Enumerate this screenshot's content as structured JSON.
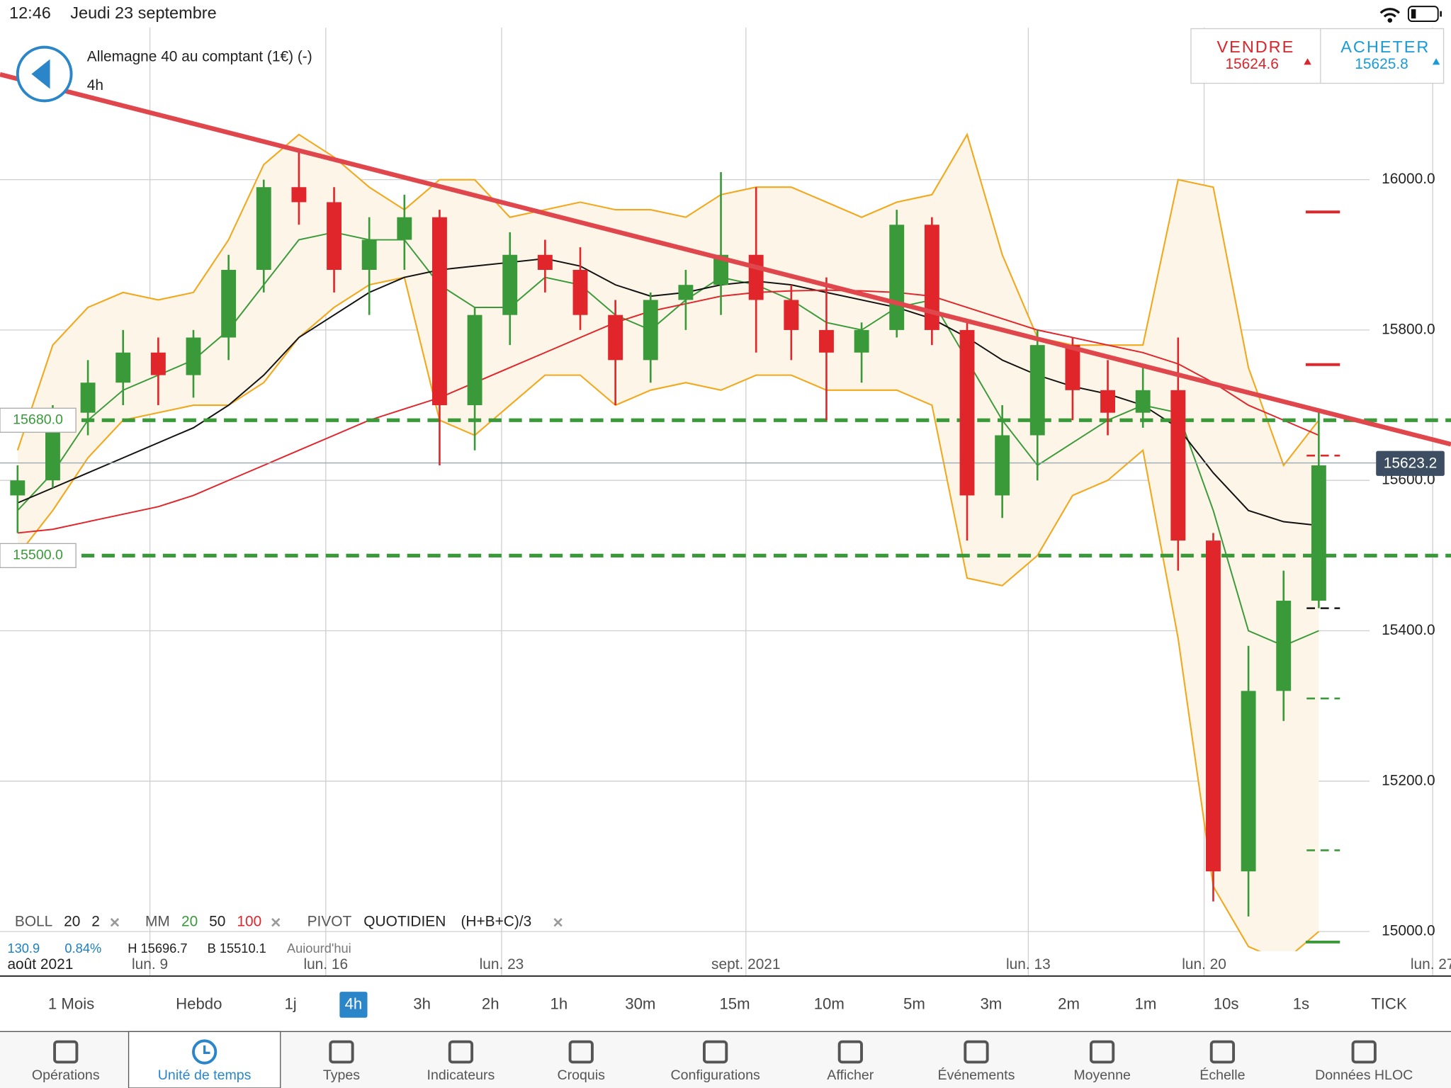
{
  "status_bar": {
    "time": "12:46",
    "date": "Jeudi 23 septembre"
  },
  "header": {
    "instrument": "Allemagne 40 au comptant (1€) (-)",
    "timeframe": "4h"
  },
  "quote": {
    "sell_label": "VENDRE",
    "sell": 15624.6,
    "buy_label": "ACHETER",
    "buy": 15625.8
  },
  "chart_data": {
    "type": "candlestick",
    "period_label": "août 2021",
    "x": [
      0.5,
      1.5,
      2.5,
      3.5,
      4.5,
      5.5,
      6.5,
      7.5,
      8.5,
      9.5,
      10.5,
      11.5,
      12.5,
      13.5,
      14.5,
      15.5,
      16.5,
      17.5,
      18.5,
      19.5,
      20.5,
      21.5,
      22.5,
      23.5,
      24.5,
      25.5,
      26.5,
      27.5,
      28.5,
      29.5,
      30.5,
      31.5,
      32.5,
      33.5,
      34.5,
      35.5,
      36.5,
      37.5
    ],
    "open": [
      15580,
      15600,
      15690,
      15730,
      15770,
      15740,
      15790,
      15880,
      15990,
      15970,
      15880,
      15920,
      15950,
      15700,
      15820,
      15900,
      15880,
      15820,
      15760,
      15840,
      15860,
      15900,
      15840,
      15800,
      15770,
      15800,
      15940,
      15800,
      15580,
      15660,
      15780,
      15720,
      15690,
      15720,
      15520,
      15080,
      15320,
      15440
    ],
    "high": [
      15620,
      15700,
      15760,
      15800,
      15790,
      15800,
      15900,
      16000,
      16040,
      15990,
      15950,
      15980,
      15960,
      15830,
      15930,
      15920,
      15910,
      15840,
      15850,
      15880,
      16010,
      15990,
      15860,
      15870,
      15810,
      15960,
      15950,
      15810,
      15700,
      15800,
      15790,
      15760,
      15750,
      15790,
      15530,
      15380,
      15480,
      15690
    ],
    "low": [
      15530,
      15590,
      15660,
      15700,
      15700,
      15710,
      15760,
      15850,
      15940,
      15850,
      15820,
      15880,
      15620,
      15640,
      15780,
      15850,
      15800,
      15700,
      15730,
      15800,
      15820,
      15770,
      15760,
      15680,
      15730,
      15790,
      15780,
      15520,
      15550,
      15600,
      15680,
      15660,
      15670,
      15480,
      15040,
      15020,
      15280,
      15430
    ],
    "close": [
      15600,
      15690,
      15730,
      15770,
      15740,
      15790,
      15880,
      15990,
      15970,
      15880,
      15920,
      15950,
      15700,
      15820,
      15900,
      15880,
      15820,
      15760,
      15840,
      15860,
      15900,
      15840,
      15800,
      15770,
      15800,
      15940,
      15800,
      15580,
      15660,
      15780,
      15720,
      15690,
      15720,
      15520,
      15080,
      15320,
      15440,
      15620
    ],
    "up_color": "#3a9a3a",
    "down_color": "#e0262b",
    "bands": {
      "color": "#f2a81d",
      "fill": "#fdf6e8",
      "upper": [
        15640,
        15780,
        15830,
        15850,
        15840,
        15850,
        15920,
        16020,
        16060,
        16030,
        15990,
        15960,
        16000,
        16000,
        15950,
        15960,
        15970,
        15960,
        15960,
        15950,
        15980,
        15990,
        15990,
        15970,
        15950,
        15970,
        15980,
        16060,
        15900,
        15790,
        15780,
        15780,
        15780,
        16000,
        15990,
        15750,
        15620,
        15680
      ],
      "lower": [
        15500,
        15560,
        15630,
        15680,
        15690,
        15700,
        15700,
        15730,
        15790,
        15830,
        15860,
        15870,
        15680,
        15660,
        15700,
        15740,
        15740,
        15700,
        15720,
        15730,
        15720,
        15740,
        15740,
        15720,
        15720,
        15720,
        15700,
        15470,
        15460,
        15500,
        15580,
        15600,
        15640,
        15390,
        15060,
        14980,
        14960,
        15000
      ]
    },
    "lines": [
      {
        "color": "#3a9a3a",
        "values": [
          15560,
          15610,
          15680,
          15720,
          15740,
          15760,
          15800,
          15860,
          15920,
          15930,
          15920,
          15920,
          15860,
          15830,
          15830,
          15870,
          15860,
          15820,
          15800,
          15840,
          15870,
          15860,
          15840,
          15810,
          15800,
          15830,
          15840,
          15760,
          15680,
          15620,
          15650,
          15680,
          15700,
          15690,
          15560,
          15400,
          15380,
          15400
        ]
      },
      {
        "color": "#111111",
        "values": [
          15570,
          15590,
          15610,
          15630,
          15650,
          15670,
          15700,
          15740,
          15790,
          15820,
          15850,
          15870,
          15880,
          15885,
          15890,
          15895,
          15885,
          15860,
          15845,
          15850,
          15860,
          15865,
          15860,
          15850,
          15840,
          15830,
          15815,
          15790,
          15760,
          15740,
          15725,
          15715,
          15700,
          15670,
          15610,
          15560,
          15545,
          15540
        ]
      },
      {
        "color": "#e0262b",
        "values": [
          15530,
          15535,
          15545,
          15555,
          15565,
          15580,
          15600,
          15620,
          15640,
          15660,
          15680,
          15695,
          15710,
          15730,
          15750,
          15770,
          15790,
          15810,
          15825,
          15835,
          15845,
          15850,
          15852,
          15853,
          15852,
          15850,
          15845,
          15830,
          15815,
          15800,
          15790,
          15780,
          15770,
          15755,
          15730,
          15700,
          15680,
          15660
        ]
      }
    ],
    "trendline": {
      "color": "#e0474c",
      "x": [
        0,
        41.26
      ],
      "y": [
        16140,
        15648
      ]
    },
    "levels": [
      {
        "value": 15680,
        "label": "15680.0",
        "color": "#3a9a3a"
      },
      {
        "value": 15500,
        "label": "15500.0",
        "color": "#3a9a3a"
      }
    ],
    "last_price": 15623.2,
    "pivots": [
      {
        "value": 15957,
        "color": "#e0262b",
        "dashed": false
      },
      {
        "value": 15754,
        "color": "#e0262b",
        "dashed": false
      },
      {
        "value": 15633,
        "color": "#e0262b",
        "dashed": true
      },
      {
        "value": 15430,
        "color": "#222222",
        "dashed": true
      },
      {
        "value": 15310,
        "color": "#3a9a3a",
        "dashed": true
      },
      {
        "value": 15108,
        "color": "#3a9a3a",
        "dashed": true
      },
      {
        "value": 14986,
        "color": "#3a9a3a",
        "dashed": false
      }
    ],
    "xlim": [
      0,
      41.26
    ],
    "xticks": [
      {
        "value": 4.263,
        "label": "lun. 9"
      },
      {
        "value": 9.263,
        "label": "lun. 16"
      },
      {
        "value": 14.263,
        "label": "lun. 23"
      },
      {
        "value": 21.21,
        "label": "sept. 2021"
      },
      {
        "value": 29.24,
        "label": "lun. 13"
      },
      {
        "value": 34.24,
        "label": "lun. 20"
      },
      {
        "value": 40.74,
        "label": "lun. 27"
      }
    ],
    "ylim": [
      14974,
      16202
    ],
    "yticks": [
      {
        "value": 15000,
        "label": "15000.0"
      },
      {
        "value": 15200,
        "label": "15200.0"
      },
      {
        "value": 15400,
        "label": "15400.0"
      },
      {
        "value": 15600,
        "label": "15600.0"
      },
      {
        "value": 15800,
        "label": "15800.0"
      },
      {
        "value": 16000,
        "label": "16000.0"
      }
    ],
    "grid": true
  },
  "indicators": {
    "boll": {
      "label": "BOLL",
      "period": 20,
      "deviation": 2
    },
    "mm": {
      "label": "MM",
      "periods": [
        20,
        50,
        100
      ]
    },
    "pivot": {
      "label": "PIVOT",
      "mode": "QUOTIDIEN",
      "formula": "(H+B+C)/3"
    }
  },
  "stats": {
    "change": 130.9,
    "change_pct": "0.84%",
    "high": "H 15696.7",
    "low": "B 15510.1",
    "period": "Aujourd'hui"
  },
  "timeframes": {
    "items": [
      "1 Mois",
      "Hebdo",
      "1j",
      "4h",
      "3h",
      "2h",
      "1h",
      "30m",
      "15m",
      "10m",
      "5m",
      "3m",
      "2m",
      "1m",
      "10s",
      "1s",
      "TICK"
    ],
    "selected": 3
  },
  "toolbar": {
    "items": [
      "Opérations",
      "Unité de temps",
      "Types",
      "Indicateurs",
      "Croquis",
      "Configurations",
      "Afficher",
      "Événements",
      "Moyenne",
      "Échelle",
      "Données HLOC"
    ],
    "selected": 1
  }
}
